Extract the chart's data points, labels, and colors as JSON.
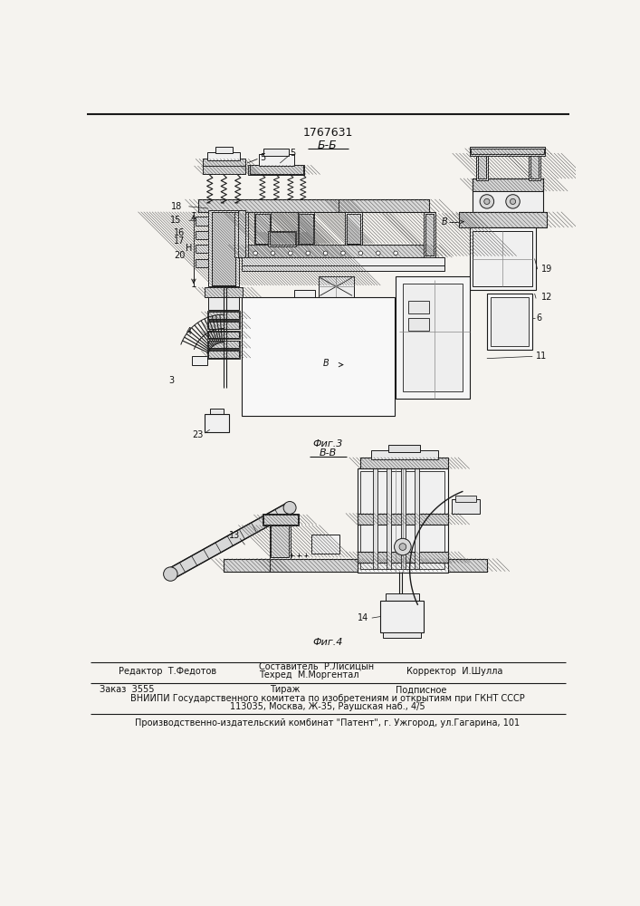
{
  "patent_number": "1767631",
  "section_label_top": "Б-Б",
  "fig3_label": "Фиг.3",
  "fig3_section": "В-В",
  "fig4_label": "Фиг.4",
  "editor_line": "Редактор  Т.Федотов",
  "composer_line1": "Составитель  Р.Лисицын",
  "composer_line2": "Техред  М.Моргентал",
  "corrector_line": "Корректор  И.Шулла",
  "order_line": "Заказ  3555",
  "tirazh_line": "Тираж",
  "podpisnoe_line": "Подписное",
  "vniip_line1": "ВНИИПИ Государственного комитета по изобретениям и открытиям при ГКНТ СССР",
  "vniip_line2": "113035, Москва, Ж-35, Раушская наб., 4/5",
  "publisher_line": "Производственно-издательский комбинат \"Патент\", г. Ужгород, ул.Гагарина, 101",
  "bg_color": "#f5f3ef",
  "line_color": "#1a1a1a",
  "hatch_color": "#555555",
  "text_color": "#111111"
}
